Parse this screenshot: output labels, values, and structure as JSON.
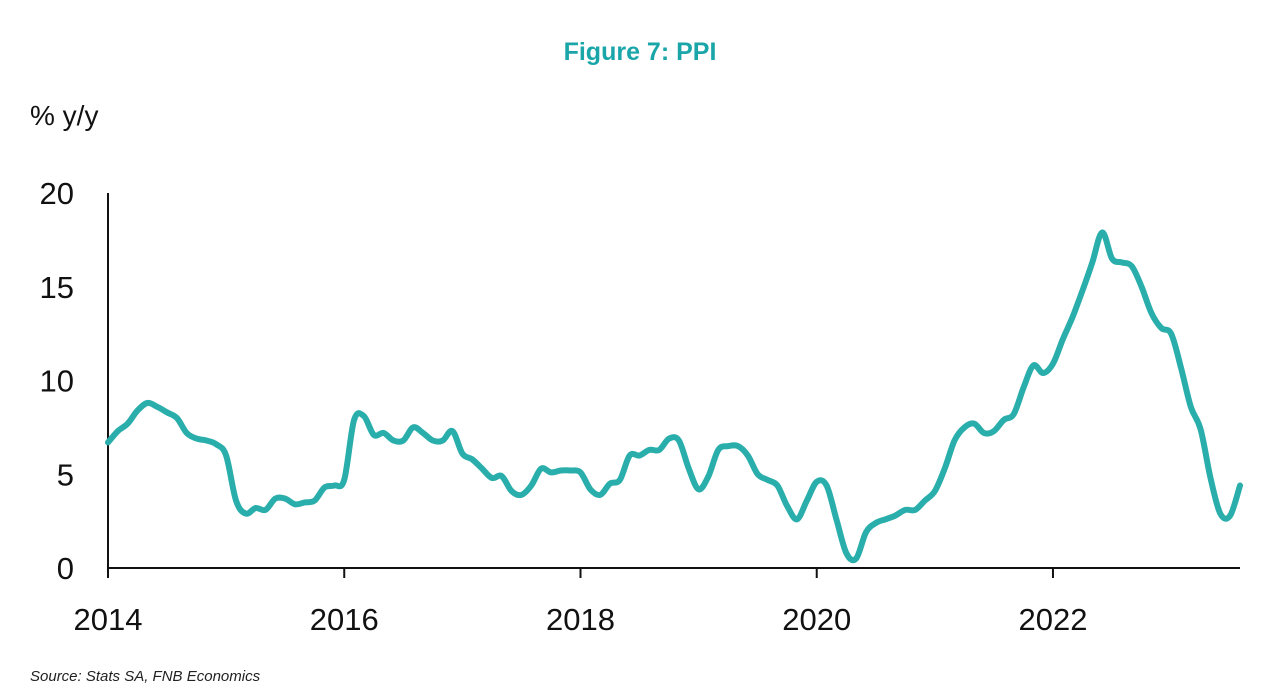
{
  "title": "Figure 7: PPI",
  "y_unit_label": "% y/y",
  "source": "Source: Stats SA, FNB Economics",
  "colors": {
    "title": "#1aa6a9",
    "series_line": "#2aaeab",
    "axis": "#111111"
  },
  "chart_data": {
    "type": "line",
    "title": "Figure 7: PPI",
    "xlabel": "",
    "ylabel": "% y/y",
    "ylim": [
      0,
      20
    ],
    "xlim": [
      "2014-01",
      "2023-08"
    ],
    "y_ticks": [
      0,
      5,
      10,
      15,
      20
    ],
    "x_ticks": [
      "2014",
      "2016",
      "2018",
      "2020",
      "2022"
    ],
    "grid": false,
    "legend": "none",
    "series": [
      {
        "x": [
          "2014-01",
          "2014-02",
          "2014-03",
          "2014-04",
          "2014-05",
          "2014-06",
          "2014-07",
          "2014-08",
          "2014-09",
          "2014-10",
          "2014-11",
          "2014-12",
          "2015-01",
          "2015-02",
          "2015-03",
          "2015-04",
          "2015-05",
          "2015-06",
          "2015-07",
          "2015-08",
          "2015-09",
          "2015-10",
          "2015-11",
          "2015-12",
          "2016-01",
          "2016-02",
          "2016-03",
          "2016-04",
          "2016-05",
          "2016-06",
          "2016-07",
          "2016-08",
          "2016-09",
          "2016-10",
          "2016-11",
          "2016-12",
          "2017-01",
          "2017-02",
          "2017-03",
          "2017-04",
          "2017-05",
          "2017-06",
          "2017-07",
          "2017-08",
          "2017-09",
          "2017-10",
          "2017-11",
          "2017-12",
          "2018-01",
          "2018-02",
          "2018-03",
          "2018-04",
          "2018-05",
          "2018-06",
          "2018-07",
          "2018-08",
          "2018-09",
          "2018-10",
          "2018-11",
          "2018-12",
          "2019-01",
          "2019-02",
          "2019-03",
          "2019-04",
          "2019-05",
          "2019-06",
          "2019-07",
          "2019-08",
          "2019-09",
          "2019-10",
          "2019-11",
          "2019-12",
          "2020-01",
          "2020-02",
          "2020-03",
          "2020-04",
          "2020-05",
          "2020-06",
          "2020-07",
          "2020-08",
          "2020-09",
          "2020-10",
          "2020-11",
          "2020-12",
          "2021-01",
          "2021-02",
          "2021-03",
          "2021-04",
          "2021-05",
          "2021-06",
          "2021-07",
          "2021-08",
          "2021-09",
          "2021-10",
          "2021-11",
          "2021-12",
          "2022-01",
          "2022-02",
          "2022-03",
          "2022-04",
          "2022-05",
          "2022-06",
          "2022-07",
          "2022-08",
          "2022-09",
          "2022-10",
          "2022-11",
          "2022-12",
          "2023-01",
          "2023-02",
          "2023-03",
          "2023-04",
          "2023-05",
          "2023-06",
          "2023-07",
          "2023-08"
        ],
        "values": [
          6.7,
          7.3,
          7.7,
          8.4,
          8.8,
          8.6,
          8.3,
          8.0,
          7.2,
          6.9,
          6.8,
          6.6,
          6.0,
          3.6,
          2.9,
          3.2,
          3.1,
          3.7,
          3.7,
          3.4,
          3.5,
          3.6,
          4.3,
          4.4,
          4.7,
          7.9,
          8.1,
          7.1,
          7.2,
          6.8,
          6.8,
          7.5,
          7.2,
          6.8,
          6.8,
          7.3,
          6.1,
          5.8,
          5.3,
          4.8,
          4.9,
          4.1,
          3.9,
          4.4,
          5.3,
          5.1,
          5.2,
          5.2,
          5.1,
          4.2,
          3.9,
          4.5,
          4.7,
          6.0,
          6.0,
          6.3,
          6.3,
          6.9,
          6.8,
          5.3,
          4.2,
          4.9,
          6.3,
          6.5,
          6.5,
          6.0,
          5.0,
          4.7,
          4.4,
          3.3,
          2.6,
          3.6,
          4.6,
          4.4,
          2.6,
          0.8,
          0.5,
          1.9,
          2.4,
          2.6,
          2.8,
          3.1,
          3.1,
          3.6,
          4.1,
          5.3,
          6.8,
          7.5,
          7.7,
          7.2,
          7.3,
          7.9,
          8.2,
          9.6,
          10.8,
          10.4,
          10.9,
          12.2,
          13.4,
          14.8,
          16.3,
          17.9,
          16.5,
          16.3,
          16.1,
          15.0,
          13.6,
          12.8,
          12.5,
          10.7,
          8.6,
          7.4,
          4.8,
          2.9,
          2.8,
          4.4
        ]
      }
    ]
  }
}
